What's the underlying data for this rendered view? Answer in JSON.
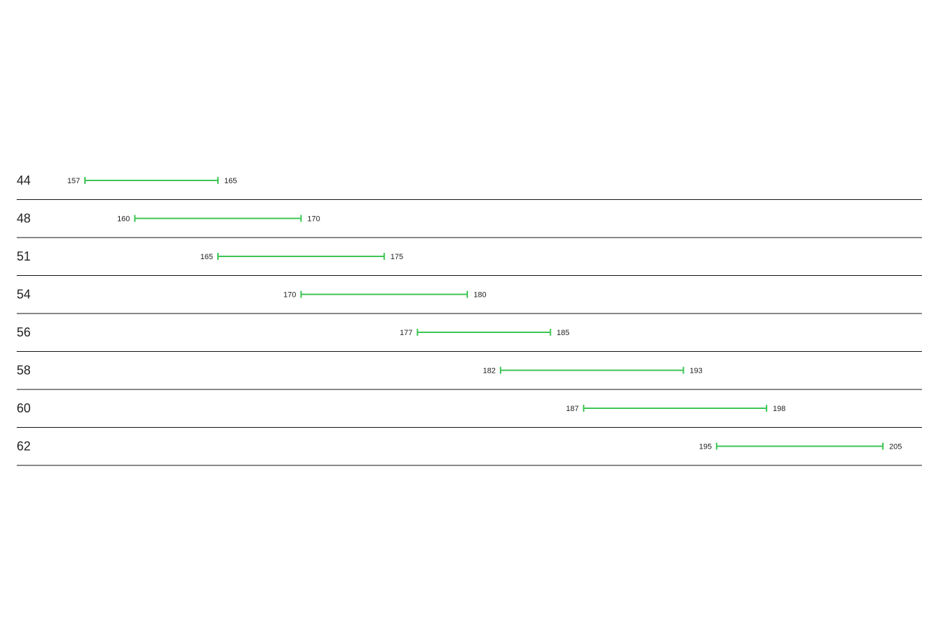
{
  "chart_data": {
    "type": "range",
    "categories": [
      "44",
      "48",
      "51",
      "54",
      "56",
      "58",
      "60",
      "62"
    ],
    "ranges": [
      {
        "min": 157,
        "max": 165
      },
      {
        "min": 160,
        "max": 170
      },
      {
        "min": 165,
        "max": 175
      },
      {
        "min": 170,
        "max": 180
      },
      {
        "min": 177,
        "max": 185
      },
      {
        "min": 182,
        "max": 193
      },
      {
        "min": 187,
        "max": 198
      },
      {
        "min": 195,
        "max": 205
      }
    ],
    "xlim": [
      157,
      205
    ],
    "grid": false,
    "bar_color": "#3cc553",
    "divider_color": "#111111"
  }
}
